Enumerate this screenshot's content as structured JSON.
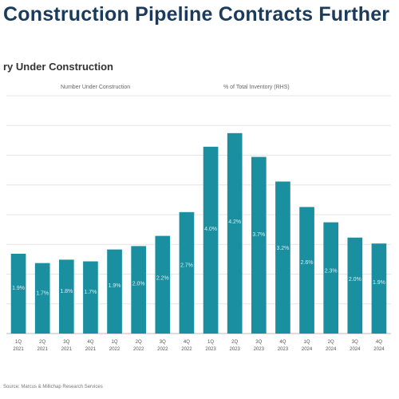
{
  "title": "Construction Pipeline Contracts Further",
  "subtitle": "ry Under Construction",
  "legend": {
    "left": "Number Under Construction",
    "right": "% of Total Inventory (RHS)"
  },
  "source": "Source: Marcus & Millichap Research Services",
  "colors": {
    "bar": "#1a8fa0",
    "title": "#1a3b5c",
    "gridline": "#e6e6e6",
    "bar_label": "#d7edf2"
  },
  "chart_data": {
    "type": "bar",
    "title": "Construction Pipeline Contracts Further",
    "categories": [
      [
        "1Q",
        "2021"
      ],
      [
        "2Q",
        "2021"
      ],
      [
        "3Q",
        "2021"
      ],
      [
        "4Q",
        "2021"
      ],
      [
        "1Q",
        "2022"
      ],
      [
        "2Q",
        "2022"
      ],
      [
        "3Q",
        "2022"
      ],
      [
        "4Q",
        "2022"
      ],
      [
        "1Q",
        "2023"
      ],
      [
        "2Q",
        "2023"
      ],
      [
        "3Q",
        "2023"
      ],
      [
        "4Q",
        "2023"
      ],
      [
        "1Q",
        "2024"
      ],
      [
        "2Q",
        "2024"
      ],
      [
        "3Q",
        "2024"
      ],
      [
        "4Q",
        "2024"
      ]
    ],
    "series": [
      {
        "name": "Number Under Construction",
        "values": [
          94,
          83,
          87,
          85,
          99,
          103,
          115,
          143,
          220,
          236,
          208,
          179,
          149,
          131,
          113,
          106
        ],
        "data_labels": [
          "1.9%",
          "1.7%",
          "1.8%",
          "1.7%",
          "1.9%",
          "2.0%",
          "2.2%",
          "2.7%",
          "4.0%",
          "4.2%",
          "3.7%",
          "3.2%",
          "2.6%",
          "2.3%",
          "2.0%",
          "1.9%"
        ]
      }
    ],
    "ylim": [
      0,
      280
    ],
    "y_gridlines": [
      0,
      35,
      70,
      105,
      140,
      175,
      210,
      245,
      280
    ],
    "grid": true,
    "legend_placement": "top"
  }
}
